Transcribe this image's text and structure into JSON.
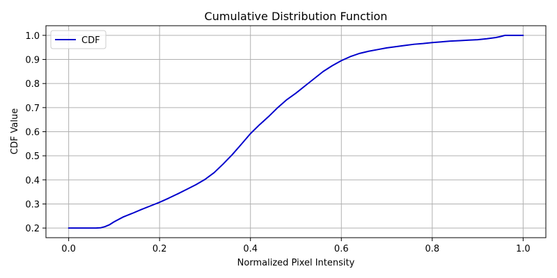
{
  "chart_data": {
    "type": "line",
    "title": "Cumulative Distribution Function",
    "xlabel": "Normalized Pixel Intensity",
    "ylabel": "CDF Value",
    "xlim": [
      -0.05,
      1.05
    ],
    "ylim": [
      0.16,
      1.04
    ],
    "xticks": [
      0.0,
      0.2,
      0.4,
      0.6,
      0.8,
      1.0
    ],
    "yticks": [
      0.2,
      0.3,
      0.4,
      0.5,
      0.6,
      0.7,
      0.8,
      0.9,
      1.0
    ],
    "xtick_labels": [
      "0.0",
      "0.2",
      "0.4",
      "0.6",
      "0.8",
      "1.0"
    ],
    "ytick_labels": [
      "0.2",
      "0.3",
      "0.4",
      "0.5",
      "0.6",
      "0.7",
      "0.8",
      "0.9",
      "1.0"
    ],
    "grid": true,
    "legend": {
      "position": "top-left",
      "entries": [
        "CDF"
      ]
    },
    "series": [
      {
        "name": "CDF",
        "color": "#0000cc",
        "x": [
          0.0,
          0.02,
          0.04,
          0.06,
          0.07,
          0.08,
          0.09,
          0.1,
          0.12,
          0.14,
          0.16,
          0.18,
          0.2,
          0.22,
          0.24,
          0.26,
          0.28,
          0.3,
          0.32,
          0.34,
          0.36,
          0.38,
          0.4,
          0.42,
          0.44,
          0.46,
          0.48,
          0.5,
          0.52,
          0.54,
          0.56,
          0.58,
          0.6,
          0.62,
          0.64,
          0.66,
          0.68,
          0.7,
          0.72,
          0.74,
          0.76,
          0.78,
          0.8,
          0.82,
          0.84,
          0.86,
          0.88,
          0.9,
          0.92,
          0.94,
          0.95,
          0.96,
          1.0
        ],
        "y": [
          0.2,
          0.2,
          0.2,
          0.2,
          0.201,
          0.206,
          0.214,
          0.226,
          0.246,
          0.261,
          0.277,
          0.292,
          0.307,
          0.324,
          0.342,
          0.361,
          0.38,
          0.402,
          0.43,
          0.466,
          0.505,
          0.548,
          0.592,
          0.629,
          0.663,
          0.7,
          0.733,
          0.76,
          0.79,
          0.82,
          0.85,
          0.874,
          0.895,
          0.912,
          0.925,
          0.934,
          0.941,
          0.948,
          0.953,
          0.958,
          0.963,
          0.966,
          0.97,
          0.973,
          0.976,
          0.978,
          0.98,
          0.982,
          0.986,
          0.991,
          0.995,
          1.0,
          1.0
        ]
      }
    ]
  }
}
